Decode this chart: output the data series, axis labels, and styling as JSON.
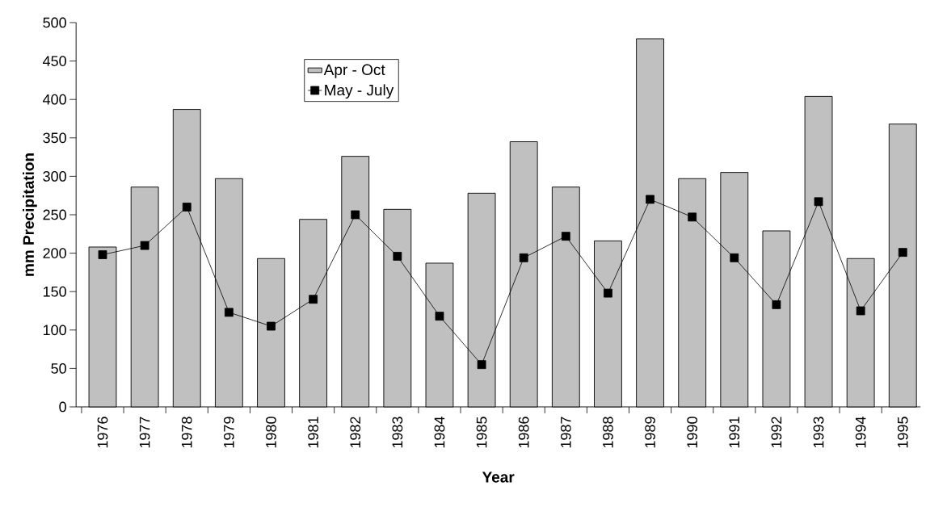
{
  "chart_data": {
    "type": "bar",
    "xlabel": "Year",
    "ylabel": "mm Precipitation",
    "categories": [
      "1976",
      "1977",
      "1978",
      "1979",
      "1980",
      "1981",
      "1982",
      "1983",
      "1984",
      "1985",
      "1986",
      "1987",
      "1988",
      "1989",
      "1990",
      "1991",
      "1992",
      "1993",
      "1994",
      "1995"
    ],
    "series": [
      {
        "name": "Apr - Oct",
        "color": "#c0c0c0",
        "values": [
          208,
          286,
          387,
          297,
          193,
          244,
          326,
          257,
          187,
          278,
          345,
          286,
          216,
          479,
          297,
          305,
          229,
          404,
          193,
          368
        ]
      },
      {
        "name": "May - July",
        "type": "line",
        "color": "#000000",
        "marker": "square",
        "values": [
          198,
          210,
          260,
          123,
          105,
          140,
          250,
          196,
          118,
          55,
          194,
          222,
          148,
          270,
          247,
          194,
          133,
          267,
          125,
          201
        ]
      }
    ],
    "ylim": [
      0,
      500
    ],
    "yticks": [
      0,
      50,
      100,
      150,
      200,
      250,
      300,
      350,
      400,
      450,
      500
    ],
    "grid": false,
    "legend": "top left"
  }
}
